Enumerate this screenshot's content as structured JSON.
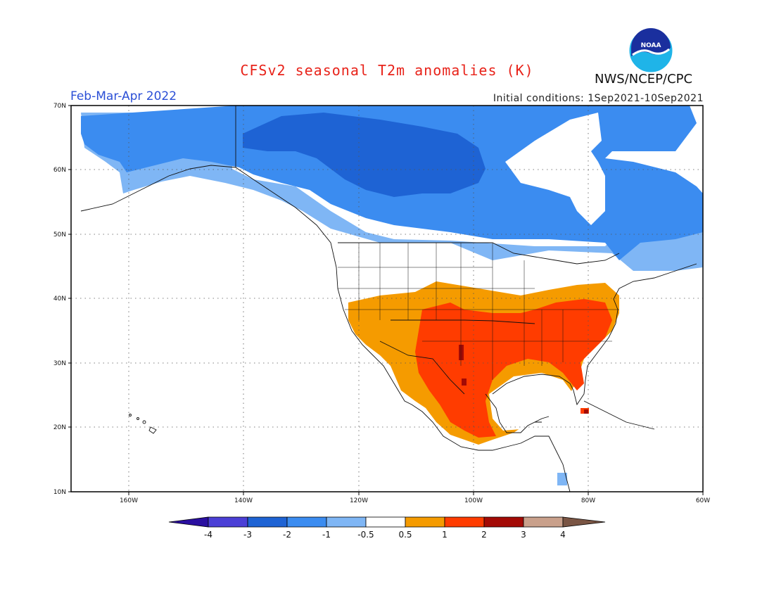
{
  "title": "CFSv2 seasonal T2m anomalies (K)",
  "season": "Feb-Mar-Apr 2022",
  "initial_conditions": "Initial conditions: 1Sep2021-10Sep2021",
  "agency": "NWS/NCEP/CPC",
  "logo_text": "NOAA",
  "lat_labels": [
    "70N",
    "60N",
    "50N",
    "40N",
    "30N",
    "20N",
    "10N"
  ],
  "lon_labels": [
    "160W",
    "140W",
    "120W",
    "100W",
    "80W",
    "60W"
  ],
  "colorbar": {
    "labels": [
      "-4",
      "-3",
      "-2",
      "-1",
      "-0.5",
      "0.5",
      "1",
      "2",
      "3",
      "4"
    ],
    "colors": [
      "#2a0fa0",
      "#4b3fd6",
      "#1e63d4",
      "#3b8cf0",
      "#7fb6f5",
      "#ffffff",
      "#f59b00",
      "#ff3c00",
      "#a30a05",
      "#c9a08b",
      "#7a5544"
    ]
  },
  "map_colors": {
    "cold_light": "#7fb6f5",
    "cold_mid": "#3b8cf0",
    "cold_strong": "#1e63d4",
    "warm_light": "#f59b00",
    "warm_mid": "#ff3c00",
    "warm_strong": "#a30a05"
  }
}
